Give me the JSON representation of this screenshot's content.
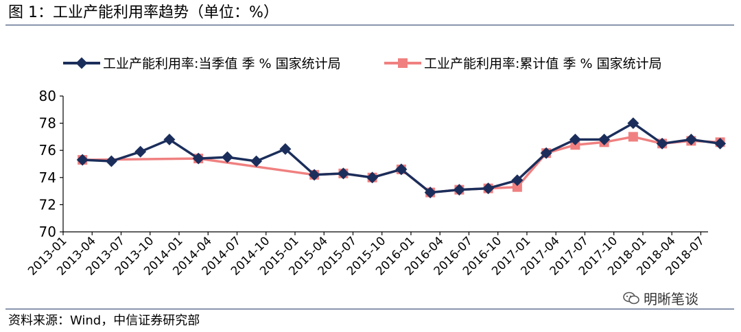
{
  "figure_title": "图 1：工业产能利用率趋势（单位：%）",
  "source": "资料来源：Wind，中信证券研究部",
  "watermark": "明晰笔谈",
  "colors": {
    "series1": "#1b2e5b",
    "series2": "#f08080",
    "rule": "#1f3864"
  },
  "chart_data": {
    "type": "line",
    "title": "",
    "xlabel": "",
    "ylabel": "",
    "ylim": [
      70,
      80
    ],
    "yticks": [
      "70",
      "72",
      "74",
      "76",
      "78",
      "80"
    ],
    "categories": [
      "2013-01",
      "2013-04",
      "2013-07",
      "2013-10",
      "2014-01",
      "2014-04",
      "2014-07",
      "2014-10",
      "2015-01",
      "2015-04",
      "2015-07",
      "2015-10",
      "2016-01",
      "2016-04",
      "2016-07",
      "2016-10",
      "2017-01",
      "2017-04",
      "2017-07",
      "2017-10",
      "2018-01",
      "2018-04",
      "2018-07"
    ],
    "legend_position": "top",
    "series": [
      {
        "name": "工业产能利用率:当季值 季 % 国家统计局",
        "marker": "diamond",
        "points": [
          {
            "x": "2013-03",
            "y": 75.3
          },
          {
            "x": "2013-06",
            "y": 75.2
          },
          {
            "x": "2013-09",
            "y": 75.9
          },
          {
            "x": "2013-12",
            "y": 76.8
          },
          {
            "x": "2014-03",
            "y": 75.4
          },
          {
            "x": "2014-06",
            "y": 75.5
          },
          {
            "x": "2014-09",
            "y": 75.2
          },
          {
            "x": "2014-12",
            "y": 76.1
          },
          {
            "x": "2015-03",
            "y": 74.2
          },
          {
            "x": "2015-06",
            "y": 74.3
          },
          {
            "x": "2015-09",
            "y": 74.0
          },
          {
            "x": "2015-12",
            "y": 74.6
          },
          {
            "x": "2016-03",
            "y": 72.9
          },
          {
            "x": "2016-06",
            "y": 73.1
          },
          {
            "x": "2016-09",
            "y": 73.2
          },
          {
            "x": "2016-12",
            "y": 73.8
          },
          {
            "x": "2017-03",
            "y": 75.8
          },
          {
            "x": "2017-06",
            "y": 76.8
          },
          {
            "x": "2017-09",
            "y": 76.8
          },
          {
            "x": "2017-12",
            "y": 78.0
          },
          {
            "x": "2018-03",
            "y": 76.5
          },
          {
            "x": "2018-06",
            "y": 76.8
          },
          {
            "x": "2018-09",
            "y": 76.5
          }
        ]
      },
      {
        "name": "工业产能利用率:累计值 季 % 国家统计局",
        "marker": "square",
        "points": [
          {
            "x": "2013-03",
            "y": 75.3
          },
          {
            "x": "2014-03",
            "y": 75.4
          },
          {
            "x": "2015-03",
            "y": 74.2
          },
          {
            "x": "2015-06",
            "y": 74.3
          },
          {
            "x": "2015-09",
            "y": 74.0
          },
          {
            "x": "2015-12",
            "y": 74.6
          },
          {
            "x": "2016-03",
            "y": 72.9
          },
          {
            "x": "2016-06",
            "y": 73.1
          },
          {
            "x": "2016-09",
            "y": 73.2
          },
          {
            "x": "2016-12",
            "y": 73.3
          },
          {
            "x": "2017-03",
            "y": 75.8
          },
          {
            "x": "2017-06",
            "y": 76.4
          },
          {
            "x": "2017-09",
            "y": 76.6
          },
          {
            "x": "2017-12",
            "y": 77.0
          },
          {
            "x": "2018-03",
            "y": 76.5
          },
          {
            "x": "2018-06",
            "y": 76.7
          },
          {
            "x": "2018-09",
            "y": 76.6
          }
        ]
      }
    ]
  }
}
